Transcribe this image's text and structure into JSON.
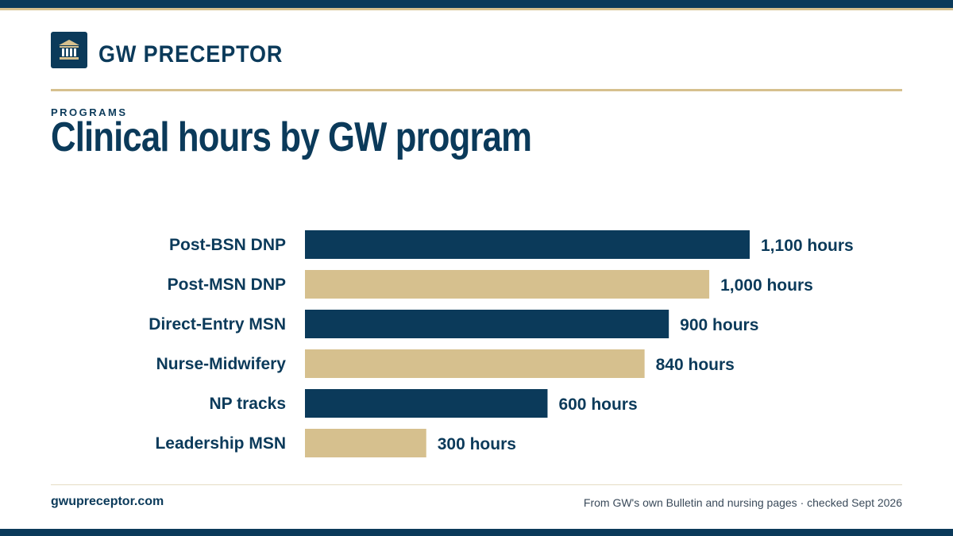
{
  "brand": {
    "name": "GW PRECEPTOR",
    "logo_icon": "institution-building-icon"
  },
  "header": {
    "eyebrow": "PROGRAMS",
    "title": "Clinical hours by GW program"
  },
  "colors": {
    "navy": "#0b3a5a",
    "gold": "#d6c08e"
  },
  "chart_data": {
    "type": "bar",
    "orientation": "horizontal",
    "categories": [
      "Post-BSN DNP",
      "Post-MSN DNP",
      "Direct-Entry MSN",
      "Nurse-Midwifery",
      "NP tracks",
      "Leadership MSN"
    ],
    "values": [
      1100,
      1000,
      900,
      840,
      600,
      300
    ],
    "value_labels": [
      "1,100 hours",
      "1,000 hours",
      "900 hours",
      "840 hours",
      "600 hours",
      "300 hours"
    ],
    "bar_colors": [
      "#0b3a5a",
      "#d6c08e",
      "#0b3a5a",
      "#d6c08e",
      "#0b3a5a",
      "#d6c08e"
    ],
    "xlim": [
      0,
      1100
    ],
    "grid": false,
    "legend": "none"
  },
  "footer": {
    "site": "gwupreceptor.com",
    "source": "From GW's own Bulletin and nursing pages · checked Sept 2026"
  }
}
